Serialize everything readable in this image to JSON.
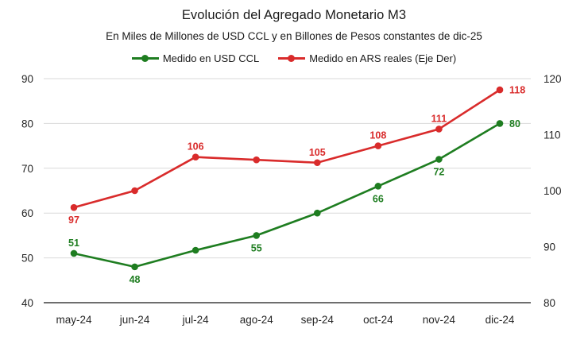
{
  "chart_data": {
    "type": "line",
    "title": "Evolución del Agregado Monetario M3",
    "subtitle": "En Miles de Millones de USD CCL y en Billones de Pesos constantes de dic-25",
    "categories": [
      "may-24",
      "jun-24",
      "jul-24",
      "ago-24",
      "sep-24",
      "oct-24",
      "nov-24",
      "dic-24"
    ],
    "axes": {
      "left": {
        "range": [
          40,
          90
        ],
        "ticks": [
          90,
          80,
          70,
          60,
          50,
          40
        ]
      },
      "right": {
        "range": [
          80,
          120
        ],
        "ticks": [
          120,
          110,
          100,
          90,
          80
        ]
      }
    },
    "grid": true,
    "legend_position": "top",
    "series": [
      {
        "name": "Medido en USD CCL",
        "axis": "left",
        "color": "#1e7d20",
        "values": [
          51,
          48,
          51.7,
          55,
          60,
          66,
          72,
          80
        ],
        "labels": [
          {
            "text": "51",
            "pos": "above"
          },
          {
            "text": "48",
            "pos": "below"
          },
          null,
          {
            "text": "55",
            "pos": "below"
          },
          null,
          {
            "text": "66",
            "pos": "below"
          },
          {
            "text": "72",
            "pos": "below"
          },
          {
            "text": "80",
            "pos": "right"
          }
        ]
      },
      {
        "name": "Medido en ARS reales (Eje Der)",
        "axis": "right",
        "color": "#d92b2b",
        "values": [
          97,
          100,
          106,
          105.5,
          105,
          108,
          111,
          118
        ],
        "labels": [
          {
            "text": "97",
            "pos": "below"
          },
          null,
          {
            "text": "106",
            "pos": "above"
          },
          null,
          {
            "text": "105",
            "pos": "above"
          },
          {
            "text": "108",
            "pos": "above"
          },
          {
            "text": "111",
            "pos": "above"
          },
          {
            "text": "118",
            "pos": "right"
          }
        ]
      }
    ],
    "colors": {
      "grid": "#d9d9d9",
      "axis_line": "#595959",
      "text": "#262626"
    }
  }
}
